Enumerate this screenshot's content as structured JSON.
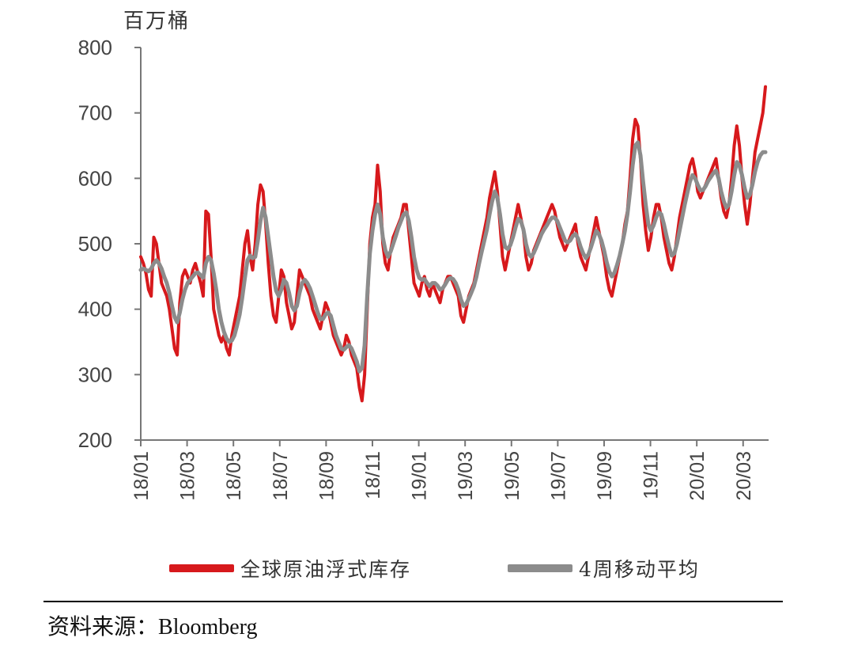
{
  "chart_data": {
    "type": "line",
    "unit_label": "百万桶",
    "ylim": [
      200,
      800
    ],
    "y_ticks": [
      200,
      300,
      400,
      500,
      600,
      700,
      800
    ],
    "x_tick_labels": [
      "18/01",
      "18/03",
      "18/05",
      "18/07",
      "18/09",
      "18/11",
      "19/01",
      "19/03",
      "19/05",
      "19/07",
      "19/09",
      "19/11",
      "20/01",
      "20/03"
    ],
    "grid": false,
    "legend_position": "bottom",
    "series": [
      {
        "name": "全球原油浮式库存",
        "color": "#d7191c",
        "values": [
          480,
          470,
          455,
          430,
          420,
          510,
          500,
          470,
          440,
          430,
          420,
          400,
          370,
          340,
          330,
          410,
          450,
          460,
          450,
          440,
          460,
          470,
          455,
          440,
          420,
          550,
          545,
          480,
          400,
          380,
          360,
          350,
          360,
          340,
          330,
          360,
          380,
          400,
          420,
          460,
          500,
          520,
          480,
          460,
          500,
          560,
          590,
          580,
          530,
          470,
          420,
          390,
          380,
          420,
          460,
          450,
          410,
          390,
          370,
          380,
          420,
          460,
          450,
          440,
          430,
          420,
          400,
          390,
          380,
          370,
          390,
          410,
          400,
          380,
          360,
          350,
          340,
          330,
          340,
          360,
          350,
          330,
          320,
          310,
          280,
          260,
          300,
          400,
          500,
          540,
          560,
          620,
          580,
          500,
          470,
          460,
          490,
          510,
          520,
          530,
          540,
          560,
          560,
          520,
          480,
          440,
          430,
          420,
          440,
          450,
          430,
          420,
          440,
          430,
          420,
          410,
          430,
          440,
          450,
          450,
          440,
          430,
          420,
          390,
          380,
          400,
          420,
          430,
          440,
          460,
          480,
          500,
          520,
          540,
          570,
          590,
          610,
          580,
          530,
          480,
          460,
          480,
          500,
          520,
          540,
          560,
          540,
          520,
          480,
          460,
          470,
          490,
          500,
          510,
          520,
          530,
          540,
          550,
          560,
          550,
          530,
          510,
          500,
          490,
          500,
          510,
          520,
          530,
          500,
          480,
          470,
          460,
          480,
          500,
          520,
          540,
          520,
          500,
          480,
          450,
          430,
          420,
          440,
          460,
          480,
          500,
          530,
          550,
          600,
          660,
          690,
          680,
          630,
          560,
          520,
          490,
          510,
          540,
          560,
          560,
          540,
          510,
          490,
          470,
          460,
          480,
          510,
          540,
          560,
          580,
          600,
          620,
          630,
          610,
          580,
          570,
          580,
          590,
          600,
          610,
          620,
          630,
          600,
          570,
          550,
          540,
          560,
          600,
          650,
          680,
          650,
          600,
          560,
          530,
          560,
          600,
          640,
          660,
          680,
          700,
          740
        ]
      },
      {
        "name": "4周移动平均",
        "color": "#8c8c8c",
        "values": [
          460,
          462,
          460,
          458,
          462,
          470,
          475,
          470,
          462,
          450,
          440,
          425,
          405,
          388,
          380,
          395,
          415,
          430,
          440,
          445,
          450,
          455,
          456,
          452,
          448,
          470,
          480,
          475,
          455,
          430,
          400,
          380,
          365,
          355,
          350,
          352,
          360,
          375,
          392,
          418,
          448,
          475,
          482,
          478,
          480,
          505,
          535,
          555,
          540,
          510,
          480,
          450,
          428,
          420,
          430,
          445,
          440,
          425,
          405,
          398,
          405,
          425,
          440,
          445,
          440,
          432,
          420,
          408,
          395,
          385,
          385,
          392,
          395,
          390,
          375,
          360,
          350,
          340,
          338,
          342,
          345,
          340,
          330,
          320,
          305,
          310,
          345,
          420,
          485,
          520,
          545,
          560,
          545,
          510,
          490,
          480,
          488,
          500,
          512,
          525,
          535,
          545,
          548,
          535,
          510,
          480,
          460,
          448,
          445,
          446,
          440,
          435,
          440,
          440,
          436,
          430,
          432,
          438,
          445,
          448,
          446,
          440,
          430,
          415,
          405,
          408,
          416,
          425,
          435,
          450,
          470,
          488,
          505,
          522,
          545,
          565,
          580,
          570,
          545,
          515,
          495,
          492,
          498,
          510,
          525,
          538,
          535,
          522,
          500,
          485,
          480,
          486,
          495,
          505,
          515,
          522,
          528,
          535,
          540,
          540,
          535,
          525,
          515,
          505,
          502,
          505,
          512,
          515,
          508,
          495,
          485,
          478,
          484,
          495,
          508,
          520,
          515,
          505,
          490,
          472,
          458,
          450,
          456,
          468,
          482,
          500,
          520,
          545,
          580,
          620,
          650,
          655,
          635,
          595,
          560,
          530,
          520,
          528,
          540,
          548,
          545,
          530,
          512,
          495,
          482,
          485,
          500,
          520,
          540,
          560,
          578,
          595,
          605,
          600,
          590,
          582,
          582,
          588,
          596,
          602,
          608,
          612,
          600,
          580,
          565,
          555,
          560,
          580,
          605,
          625,
          620,
          605,
          585,
          570,
          575,
          590,
          610,
          625,
          635,
          640,
          640
        ]
      }
    ]
  },
  "source": {
    "label": "资料来源：",
    "name": "Bloomberg"
  }
}
